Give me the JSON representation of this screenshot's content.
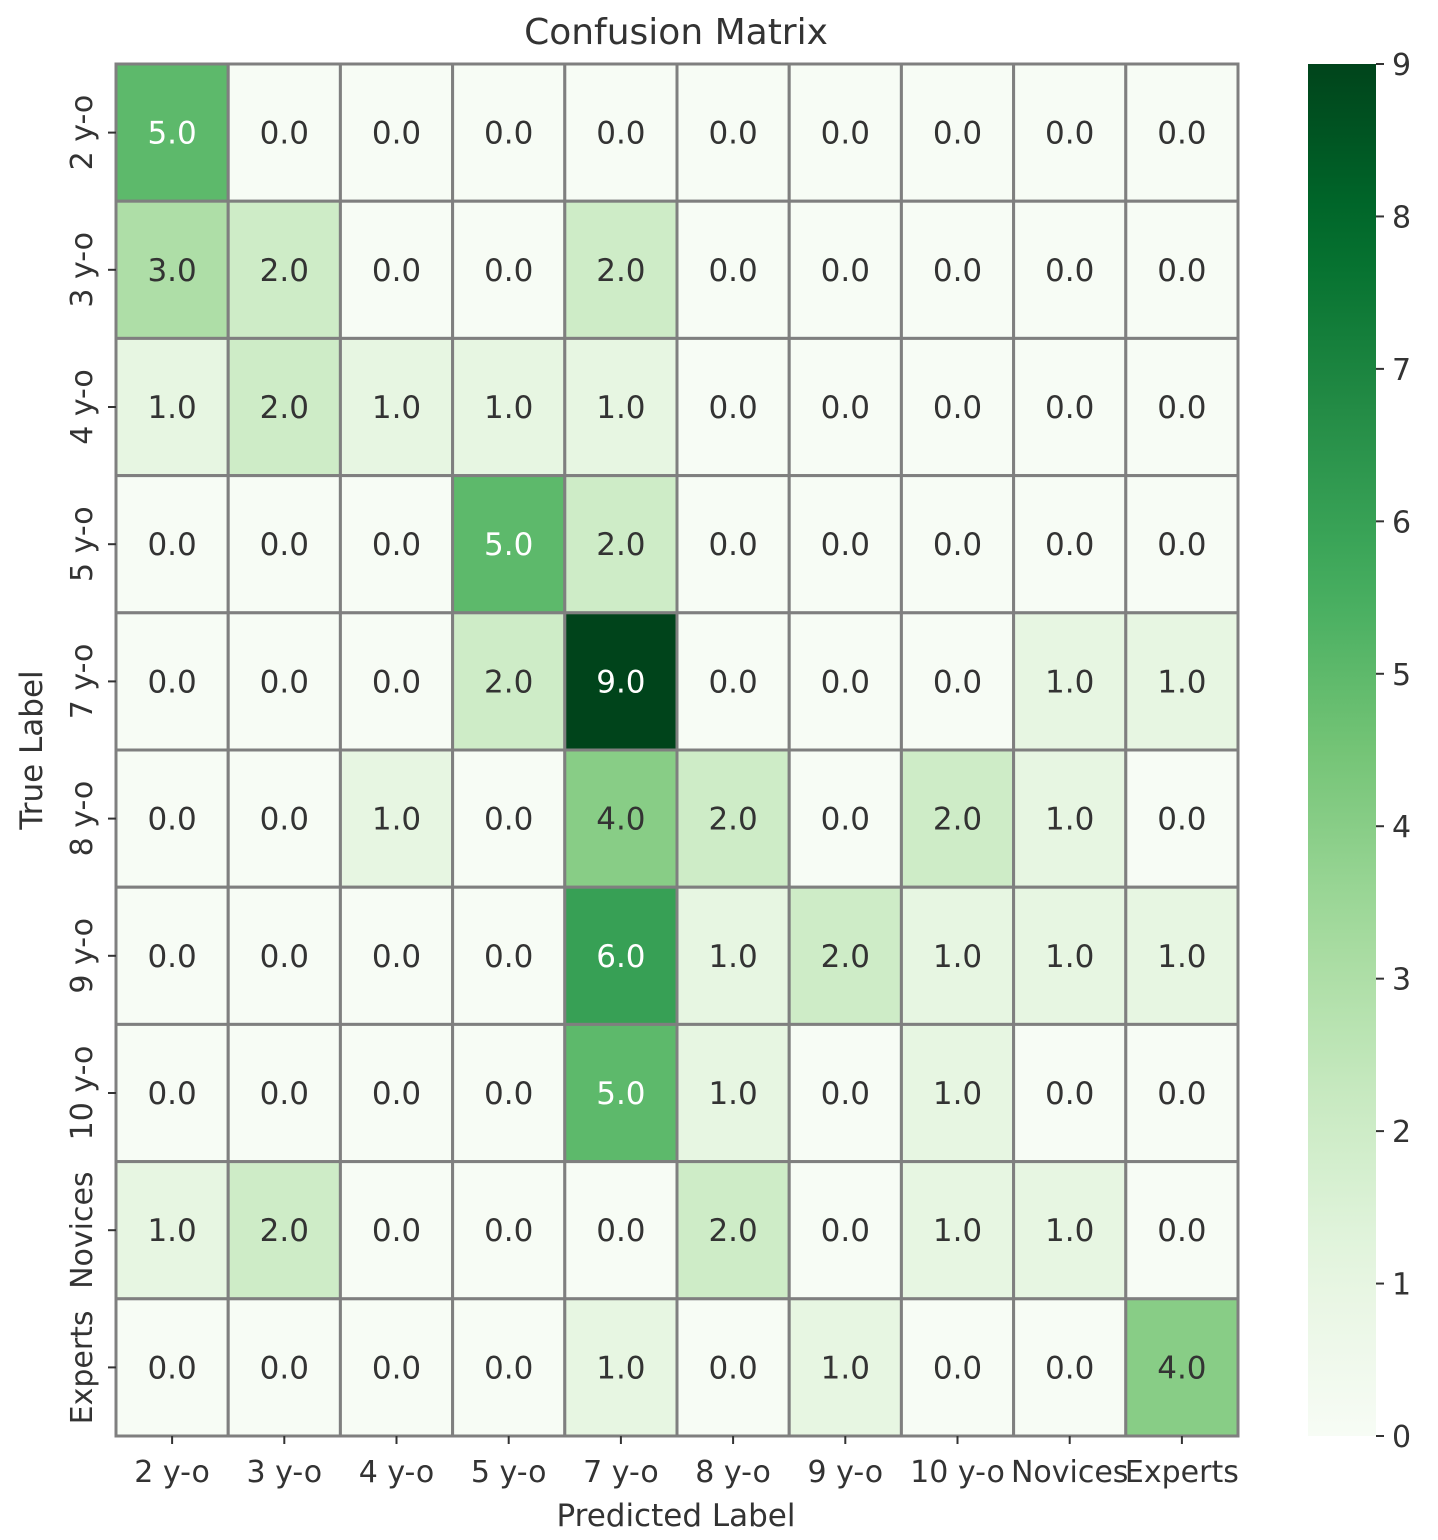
{
  "chart_data": {
    "type": "heatmap",
    "title": "Confusion Matrix",
    "xlabel": "Predicted Label",
    "ylabel": "True Label",
    "x_categories": [
      "2 y-o",
      "3 y-o",
      "4 y-o",
      "5 y-o",
      "7 y-o",
      "8 y-o",
      "9 y-o",
      "10 y-o",
      "Novices",
      "Experts"
    ],
    "y_categories": [
      "2 y-o",
      "3 y-o",
      "4 y-o",
      "5 y-o",
      "7 y-o",
      "8 y-o",
      "9 y-o",
      "10 y-o",
      "Novices",
      "Experts"
    ],
    "values": [
      [
        5,
        0,
        0,
        0,
        0,
        0,
        0,
        0,
        0,
        0
      ],
      [
        3,
        2,
        0,
        0,
        2,
        0,
        0,
        0,
        0,
        0
      ],
      [
        1,
        2,
        1,
        1,
        1,
        0,
        0,
        0,
        0,
        0
      ],
      [
        0,
        0,
        0,
        5,
        2,
        0,
        0,
        0,
        0,
        0
      ],
      [
        0,
        0,
        0,
        2,
        9,
        0,
        0,
        0,
        1,
        1
      ],
      [
        0,
        0,
        1,
        0,
        4,
        2,
        0,
        2,
        1,
        0
      ],
      [
        0,
        0,
        0,
        0,
        6,
        1,
        2,
        1,
        1,
        1
      ],
      [
        0,
        0,
        0,
        0,
        5,
        1,
        0,
        1,
        0,
        0
      ],
      [
        1,
        2,
        0,
        0,
        0,
        2,
        0,
        1,
        1,
        0
      ],
      [
        0,
        0,
        0,
        0,
        1,
        0,
        1,
        0,
        0,
        4
      ]
    ],
    "value_format": "0.0",
    "colormap": "Greens",
    "vmin": 0,
    "vmax": 9,
    "colorbar_ticks": [
      0,
      1,
      2,
      3,
      4,
      5,
      6,
      7,
      8,
      9
    ],
    "colors": {
      "low": "#f7fcf5",
      "high": "#00441b",
      "cell_border": "#7f7f7f",
      "text_dark": "#333333",
      "text_light": "#ffffff"
    }
  }
}
